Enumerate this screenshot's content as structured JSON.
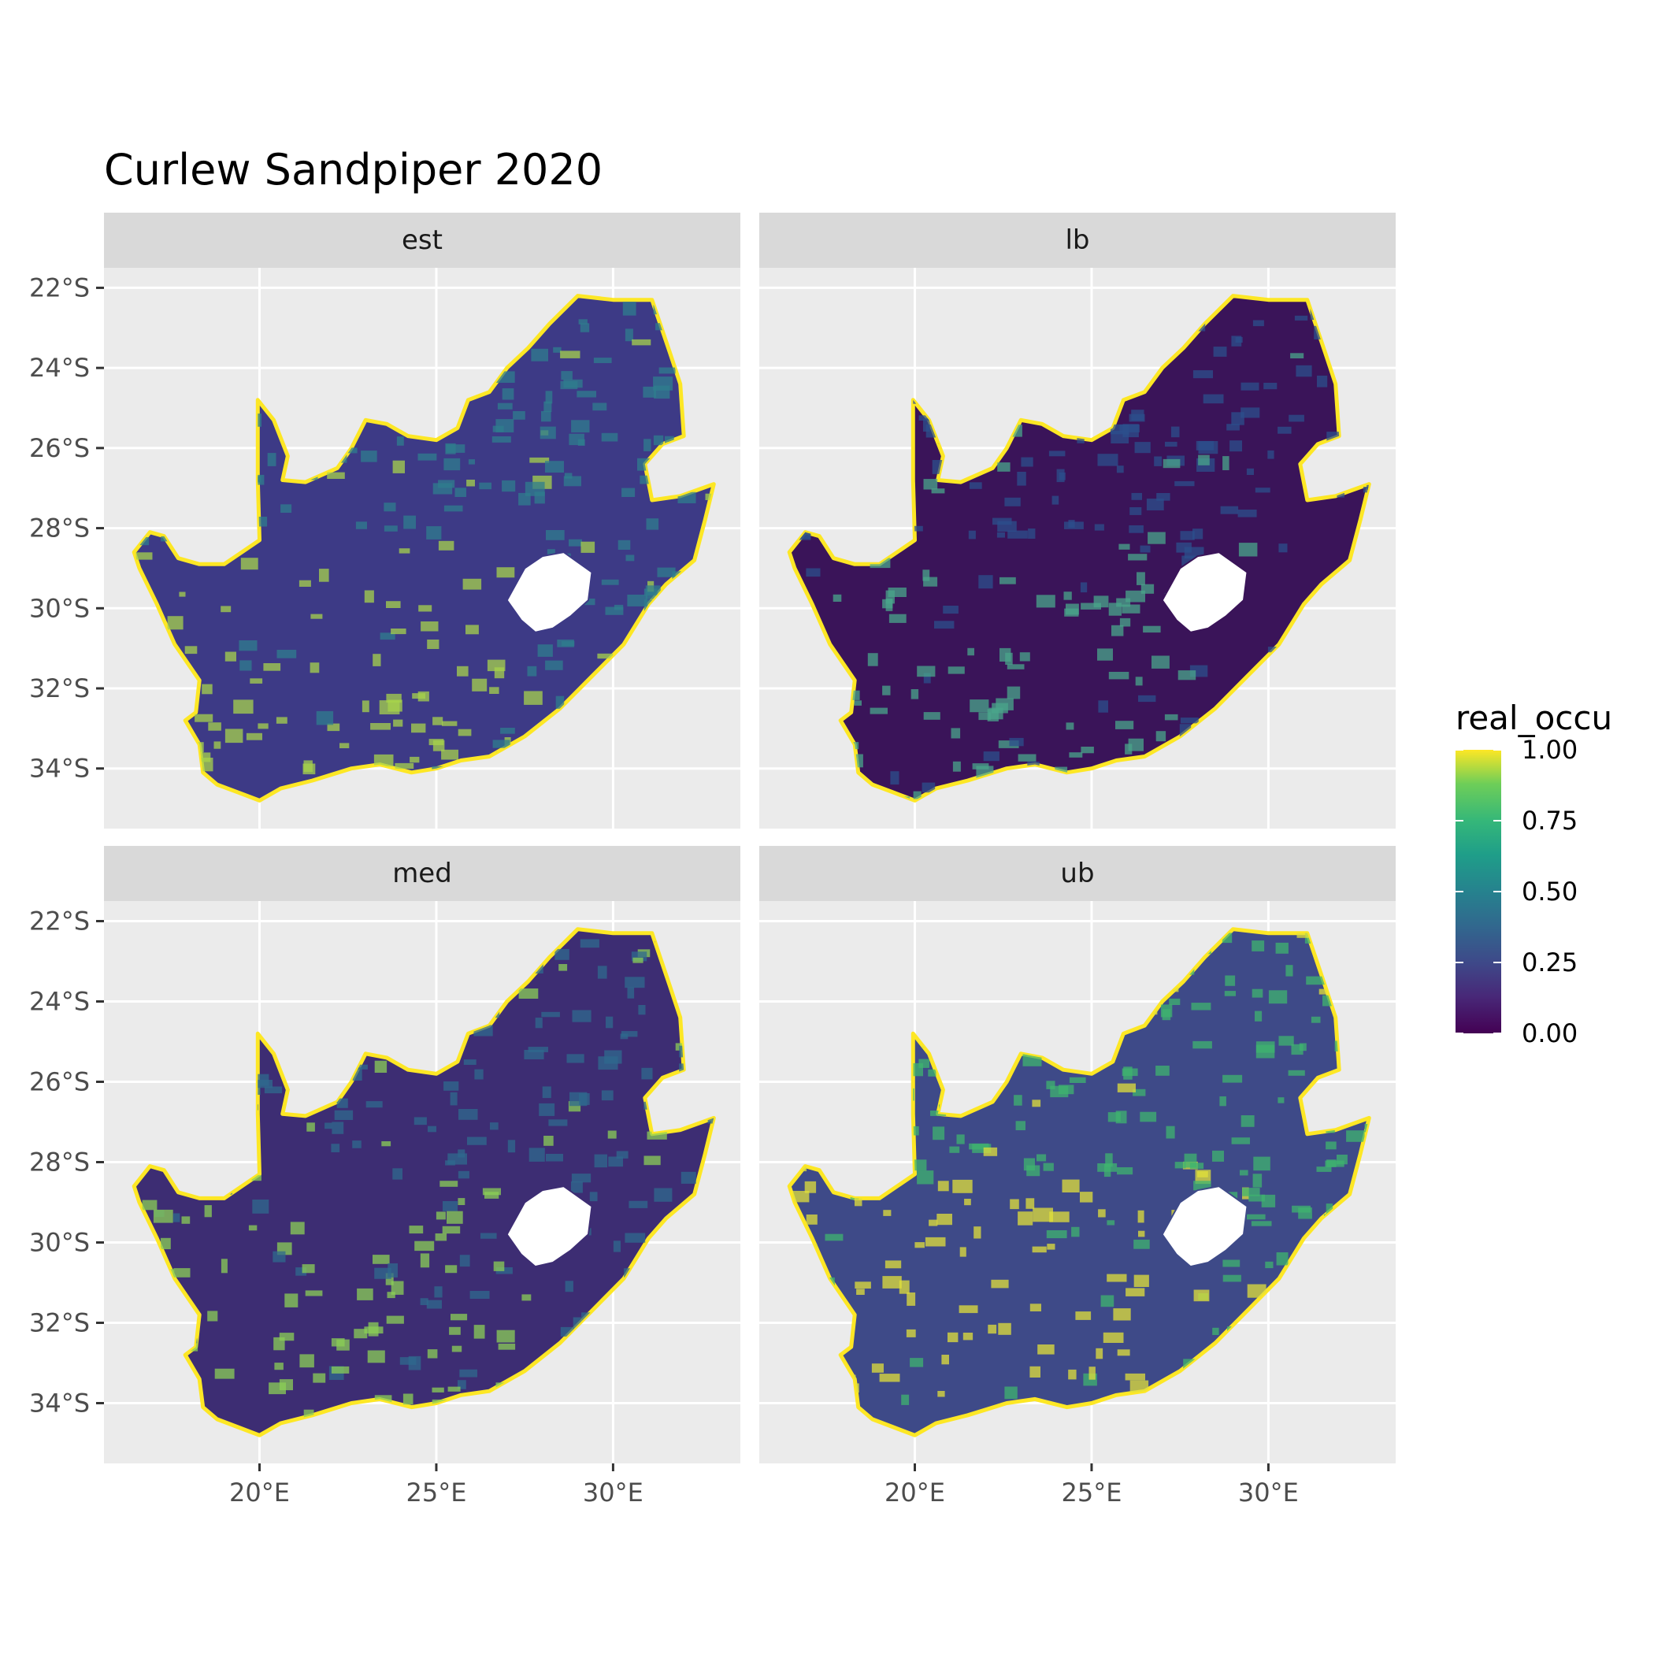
{
  "title": "Curlew Sandpiper 2020",
  "panels": [
    {
      "label": "est"
    },
    {
      "label": "lb"
    },
    {
      "label": "med"
    },
    {
      "label": "ub"
    }
  ],
  "axes": {
    "y_ticks": [
      "22°S",
      "24°S",
      "26°S",
      "28°S",
      "30°S",
      "32°S",
      "34°S"
    ],
    "y_values": [
      -22,
      -24,
      -26,
      -28,
      -30,
      -32,
      -34
    ],
    "y_range": [
      -35.5,
      -21.5
    ],
    "x_ticks": [
      "20°E",
      "25°E",
      "30°E"
    ],
    "x_values": [
      20,
      25,
      30
    ],
    "x_range": [
      15.6,
      33.6
    ]
  },
  "legend": {
    "title": "real_occu",
    "labels": [
      "1.00",
      "0.75",
      "0.50",
      "0.25",
      "0.00"
    ],
    "values": [
      1.0,
      0.75,
      0.5,
      0.25,
      0.0
    ],
    "colors": [
      "#fde725",
      "#5ec962",
      "#21918c",
      "#3b528b",
      "#440154"
    ]
  },
  "colors": {
    "panel_bg": "#ebebeb",
    "grid": "#ffffff",
    "strip_bg": "#d9d9d9",
    "lesotho_fill": "#ffffff",
    "coast_highlight": "#fde725"
  }
}
